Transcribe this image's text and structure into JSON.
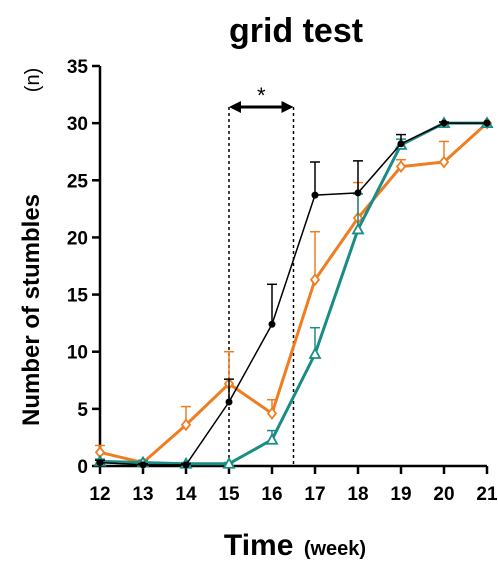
{
  "chart_data": {
    "type": "line",
    "title": "grid test",
    "xlabel": "Time",
    "xlabel_unit": "(week)",
    "ylabel": "Number of stumbles",
    "ylabel_unit": "(n)",
    "xlim": [
      12,
      21
    ],
    "ylim": [
      0,
      35
    ],
    "xticks": [
      12,
      13,
      14,
      15,
      16,
      17,
      18,
      19,
      20,
      21
    ],
    "yticks": [
      0,
      5,
      10,
      15,
      20,
      25,
      30,
      35
    ],
    "grid": false,
    "legend": "none",
    "significance": {
      "label": "*",
      "x_range": [
        15,
        16.5
      ]
    },
    "x": [
      12,
      13,
      14,
      15,
      16,
      17,
      18,
      19,
      20,
      21
    ],
    "series": [
      {
        "color": "#ef7d22",
        "marker": "diamond-open",
        "values": [
          1.2,
          0.3,
          3.6,
          7.2,
          4.6,
          16.3,
          21.7,
          26.2,
          26.6,
          30.0
        ],
        "errors": [
          0.6,
          0.2,
          1.6,
          2.8,
          1.2,
          4.2,
          3.1,
          0.6,
          1.8,
          0.0
        ]
      },
      {
        "color": "#1a8c86",
        "marker": "triangle-open",
        "values": [
          0.4,
          0.3,
          0.2,
          0.2,
          2.3,
          9.8,
          20.7,
          28.1,
          30.0,
          30.0
        ],
        "errors": [
          0.2,
          0.2,
          0.1,
          0.1,
          0.8,
          2.3,
          3.1,
          0.5,
          0.1,
          0.0
        ]
      },
      {
        "color": "#000000",
        "marker": "circle-filled",
        "values": [
          0.3,
          0.1,
          0.1,
          5.6,
          12.4,
          23.7,
          23.9,
          28.2,
          30.0,
          30.0
        ],
        "errors": [
          0.2,
          0.1,
          0.1,
          2.0,
          3.5,
          2.9,
          2.8,
          0.8,
          0.1,
          0.0
        ]
      }
    ]
  }
}
